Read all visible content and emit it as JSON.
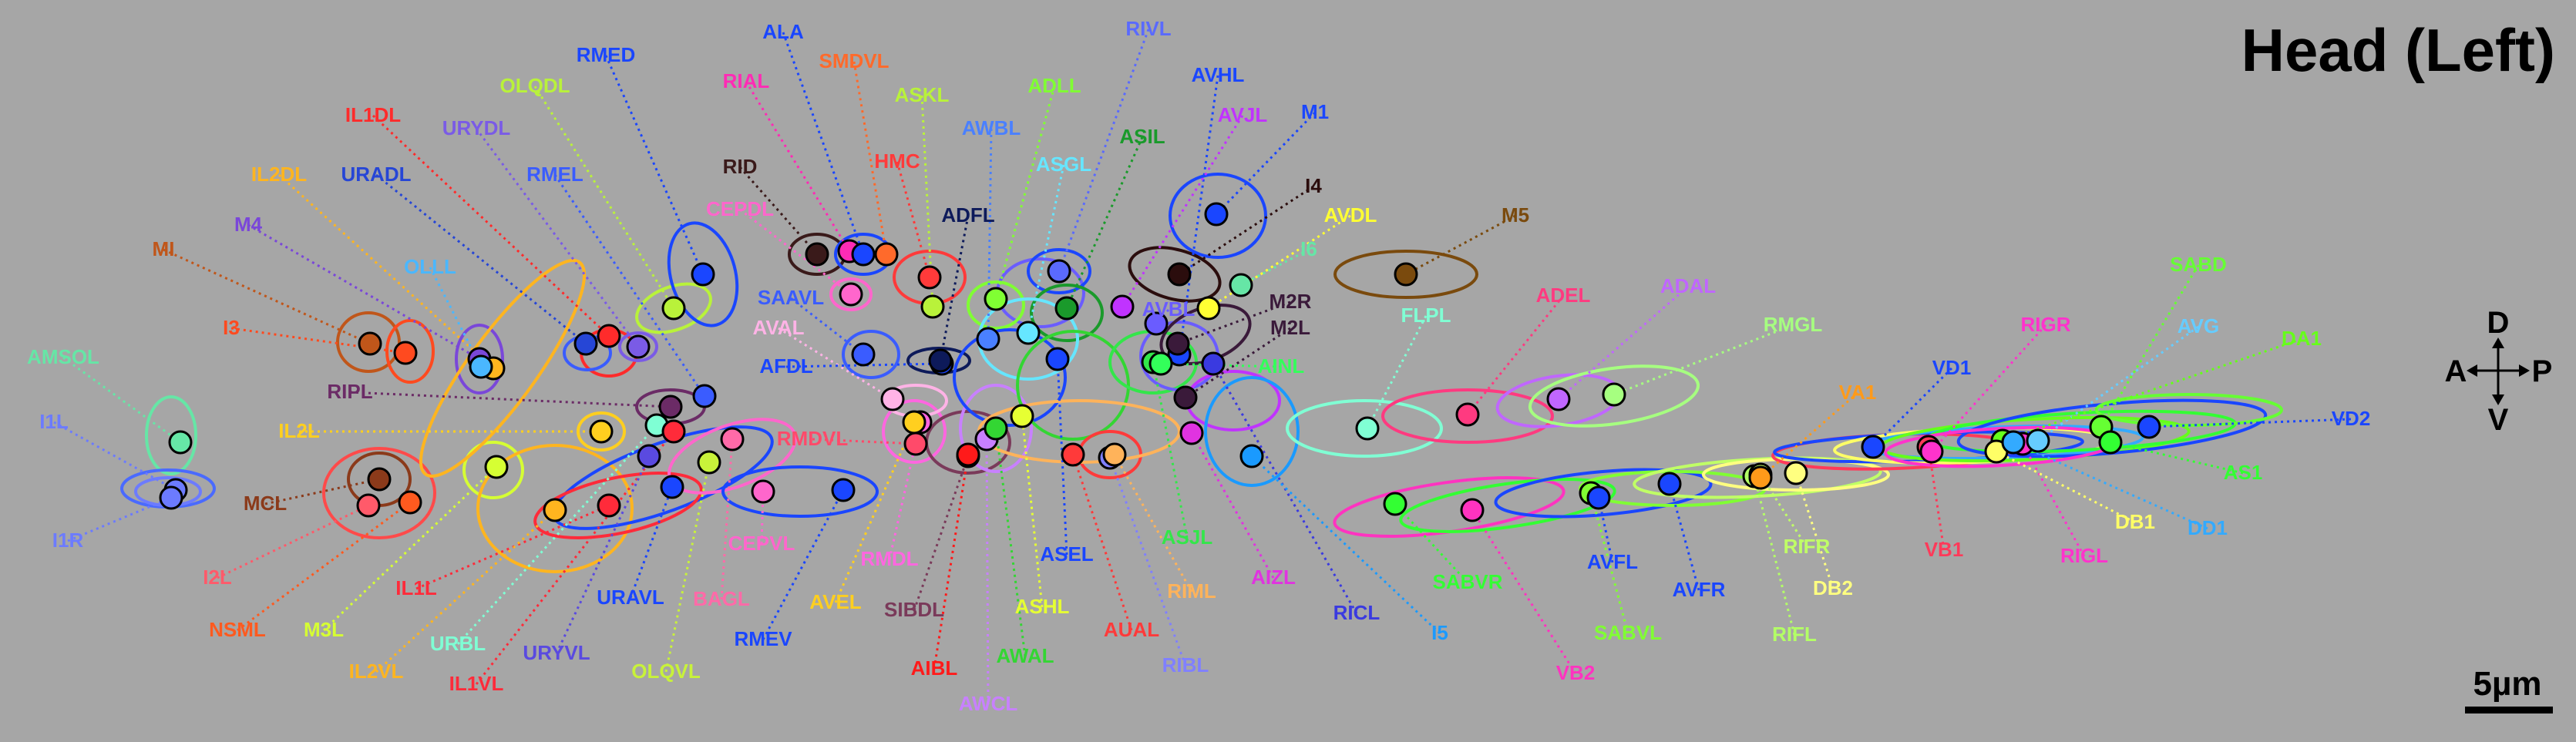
{
  "title": "Head (Left)",
  "compass": {
    "dorsal": "D",
    "anterior": "A",
    "posterior": "P",
    "ventral": "V"
  },
  "scale_bar": "5µm",
  "neurons": [
    {
      "name": "AMSOL",
      "color": "#66e6a6"
    },
    {
      "name": "I1L",
      "color": "#6c7bff"
    },
    {
      "name": "I1R",
      "color": "#6c7bff"
    },
    {
      "name": "MI",
      "color": "#c0561a"
    },
    {
      "name": "M4",
      "color": "#7a47d9"
    },
    {
      "name": "I3",
      "color": "#ff4a1f"
    },
    {
      "name": "RIPL",
      "color": "#6b2b66"
    },
    {
      "name": "I2L",
      "color": "#ff5a6a"
    },
    {
      "name": "MCL",
      "color": "#8b3a1a"
    },
    {
      "name": "NSML",
      "color": "#ff5a1f"
    },
    {
      "name": "IL2DL",
      "color": "#ffb51f"
    },
    {
      "name": "URADL",
      "color": "#2646d6"
    },
    {
      "name": "OLLL",
      "color": "#4ab7ff"
    },
    {
      "name": "IL2L",
      "color": "#ffcf1f"
    },
    {
      "name": "M3L",
      "color": "#d6ff33"
    },
    {
      "name": "IL1L",
      "color": "#ff2b3a"
    },
    {
      "name": "IL2VL",
      "color": "#ffb51f"
    },
    {
      "name": "URBL",
      "color": "#7fffd4"
    },
    {
      "name": "IL1VL",
      "color": "#ff2b3a"
    },
    {
      "name": "URYVL",
      "color": "#5a4ae0"
    },
    {
      "name": "IL1DL",
      "color": "#ff2b2b"
    },
    {
      "name": "URYDL",
      "color": "#7a5be6"
    },
    {
      "name": "OLQDL",
      "color": "#b9f23a"
    },
    {
      "name": "RMED",
      "color": "#1a46ff"
    },
    {
      "name": "RMEL",
      "color": "#3a5cff"
    },
    {
      "name": "URAVL",
      "color": "#1a46ff"
    },
    {
      "name": "OLQVL",
      "color": "#c8f23a"
    },
    {
      "name": "BAGL",
      "color": "#ff6aa8"
    },
    {
      "name": "RMEV",
      "color": "#1a46ff"
    },
    {
      "name": "RIAL",
      "color": "#ff2bb5"
    },
    {
      "name": "ALA",
      "color": "#1a46ff"
    },
    {
      "name": "SMDVL",
      "color": "#ff6a2b"
    },
    {
      "name": "RID",
      "color": "#3a1a1a"
    },
    {
      "name": "CEPDL",
      "color": "#ff66cc"
    },
    {
      "name": "SAAVL",
      "color": "#3a5cff"
    },
    {
      "name": "AVAL",
      "color": "#ffb3e6"
    },
    {
      "name": "AFDL",
      "color": "#1a46ff"
    },
    {
      "name": "RMDVL",
      "color": "#ff4a6a"
    },
    {
      "name": "CEPVL",
      "color": "#ff66cc"
    },
    {
      "name": "RMDL",
      "color": "#ff66e0"
    },
    {
      "name": "AVEL",
      "color": "#ffcf1f"
    },
    {
      "name": "SIBDL",
      "color": "#7a3a5a"
    },
    {
      "name": "AIBL",
      "color": "#ff1a1a"
    },
    {
      "name": "AWCL",
      "color": "#c880ff"
    },
    {
      "name": "ASKL",
      "color": "#b9f23a"
    },
    {
      "name": "HMC",
      "color": "#ff3a3a"
    },
    {
      "name": "AWBL",
      "color": "#4a80ff"
    },
    {
      "name": "ADFL",
      "color": "#0d1a5a"
    },
    {
      "name": "ASHL",
      "color": "#e6ff33"
    },
    {
      "name": "AWAL",
      "color": "#33d633"
    },
    {
      "name": "ASEL",
      "color": "#1a46ff"
    },
    {
      "name": "AUAL",
      "color": "#ff3a3a"
    },
    {
      "name": "RIBL",
      "color": "#8080ff"
    },
    {
      "name": "RIML",
      "color": "#ffb35a"
    },
    {
      "name": "ASJL",
      "color": "#33e64a"
    },
    {
      "name": "AIZL",
      "color": "#e033e0"
    },
    {
      "name": "RIVL",
      "color": "#5a6aff"
    },
    {
      "name": "ADLL",
      "color": "#80ff33"
    },
    {
      "name": "ASIL",
      "color": "#1a9a2b"
    },
    {
      "name": "ASGL",
      "color": "#66e6ff"
    },
    {
      "name": "AVHL",
      "color": "#1a46ff"
    },
    {
      "name": "AVJL",
      "color": "#c033ff"
    },
    {
      "name": "M1",
      "color": "#1a46ff"
    },
    {
      "name": "I4",
      "color": "#2b0d0d"
    },
    {
      "name": "AVDL",
      "color": "#ffff33"
    },
    {
      "name": "I6",
      "color": "#66e6a6"
    },
    {
      "name": "M2R",
      "color": "#3a1a3a"
    },
    {
      "name": "M2L",
      "color": "#3a1a3a"
    },
    {
      "name": "AVBL",
      "color": "#6a5cff"
    },
    {
      "name": "AINL",
      "color": "#33ff5a"
    },
    {
      "name": "RICL",
      "color": "#3a3ae0"
    },
    {
      "name": "I5",
      "color": "#1a9aff"
    },
    {
      "name": "M5",
      "color": "#7a4a0d"
    },
    {
      "name": "FLPL",
      "color": "#80ffd4"
    },
    {
      "name": "ADEL",
      "color": "#ff3a80"
    },
    {
      "name": "ADAL",
      "color": "#c066ff"
    },
    {
      "name": "RMGL",
      "color": "#a6ff80"
    },
    {
      "name": "SABVR",
      "color": "#33ff33"
    },
    {
      "name": "VB2",
      "color": "#ff33c0"
    },
    {
      "name": "SABVL",
      "color": "#80ff33"
    },
    {
      "name": "AVFL",
      "color": "#1a46ff"
    },
    {
      "name": "AVFR",
      "color": "#1a46ff"
    },
    {
      "name": "RIFL",
      "color": "#b3ff66"
    },
    {
      "name": "RIFR",
      "color": "#c0ff66"
    },
    {
      "name": "DB2",
      "color": "#ffff80"
    },
    {
      "name": "VB1",
      "color": "#ff3a5a"
    },
    {
      "name": "VA1",
      "color": "#ff9a1a"
    },
    {
      "name": "VD1",
      "color": "#1a46ff"
    },
    {
      "name": "RIGR",
      "color": "#ff33cc"
    },
    {
      "name": "RIGL",
      "color": "#ff33cc"
    },
    {
      "name": "AVG",
      "color": "#66ccff"
    },
    {
      "name": "SABD",
      "color": "#66ff33"
    },
    {
      "name": "DA1",
      "color": "#66ff1a"
    },
    {
      "name": "VD2",
      "color": "#1a46ff"
    },
    {
      "name": "AS1",
      "color": "#33ff33"
    },
    {
      "name": "DB1",
      "color": "#ffff66"
    },
    {
      "name": "DD1",
      "color": "#33aaff"
    }
  ]
}
